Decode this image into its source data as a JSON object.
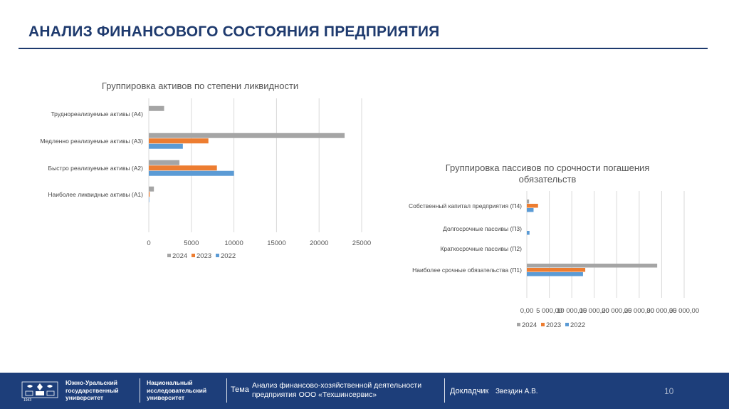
{
  "slide": {
    "title": "АНАЛИЗ ФИНАНСОВОГО СОСТОЯНИЯ ПРЕДПРИЯТИЯ"
  },
  "chart_data": [
    {
      "type": "bar",
      "orientation": "horizontal",
      "title": "Группировка активов по степени ликвидности",
      "categories": [
        "Труднореализуемые активы (А4)",
        "Медленно реализуемые активы (А3)",
        "Быстро реализуемые активы (А2)",
        "Наиболее ликвидные активы (А1)"
      ],
      "series": [
        {
          "name": "2024",
          "color": "#a5a5a5",
          "values": [
            1800,
            23000,
            3600,
            600
          ]
        },
        {
          "name": "2023",
          "color": "#ed7d31",
          "values": [
            0,
            7000,
            8000,
            100
          ]
        },
        {
          "name": "2022",
          "color": "#5b9bd5",
          "values": [
            0,
            4000,
            10000,
            50
          ]
        }
      ],
      "xlim": [
        0,
        25000
      ],
      "ticks": [
        0,
        5000,
        10000,
        15000,
        20000,
        25000
      ],
      "tick_labels": [
        "0",
        "5000",
        "10000",
        "15000",
        "20000",
        "25000"
      ],
      "legend": [
        "2024",
        "2023",
        "2022"
      ],
      "legend_position": "bottom"
    },
    {
      "type": "bar",
      "orientation": "horizontal",
      "title_lines": [
        "Группировка пассивов по срочности погашения",
        "обязательств"
      ],
      "categories": [
        "Собственный капитал предприятия (П4)",
        "Долгосрочные пассивы (П3)",
        "Краткосрочные пассивы (П2)",
        "Наиболее срочные обязательства (П1)"
      ],
      "series": [
        {
          "name": "2024",
          "color": "#a5a5a5",
          "values": [
            500,
            0,
            0,
            29000
          ]
        },
        {
          "name": "2023",
          "color": "#ed7d31",
          "values": [
            2500,
            0,
            0,
            13000
          ]
        },
        {
          "name": "2022",
          "color": "#5b9bd5",
          "values": [
            1500,
            600,
            0,
            12500
          ]
        }
      ],
      "xlim": [
        0,
        35000
      ],
      "ticks": [
        0,
        5000,
        10000,
        15000,
        20000,
        25000,
        30000,
        35000
      ],
      "tick_labels": [
        "0,00",
        "5 000,00",
        "10 000,00",
        "15 000,00",
        "20 000,00",
        "25 000,00",
        "30 000,00",
        "35 000,00"
      ],
      "legend": [
        "2024",
        "2023",
        "2022"
      ],
      "legend_position": "bottom"
    }
  ],
  "footer": {
    "university_line1": "Южно-Уральский",
    "university_line2": "государственный",
    "university_line3": "университет",
    "subtitle_line1": "Национальный",
    "subtitle_line2": "исследовательский",
    "subtitle_line3": "университет",
    "topic_label": "Тема",
    "topic_text": "Анализ финансово-хозяйственной деятельности предприятия ООО «Техшинсервис»",
    "speaker_label": "Докладчик",
    "speaker_name": "Звездин А.В.",
    "page_number": "10",
    "logo_year": "1943"
  }
}
